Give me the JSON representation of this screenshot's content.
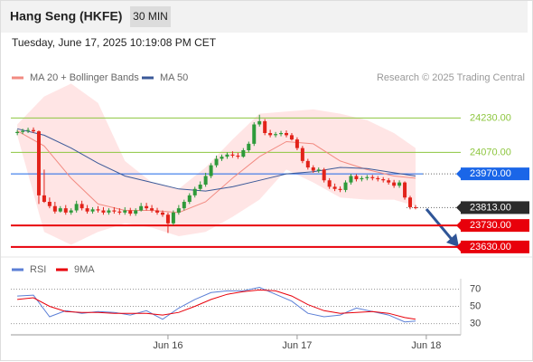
{
  "header": {
    "title": "Hang Seng (HKFE)",
    "timeframe": "30 MIN",
    "timestamp": "Tuesday, June 17, 2025 10:19:08 PM CET",
    "copyright": "Research © 2025 Trading Central"
  },
  "chart_data": [
    {
      "type": "candlestick",
      "x": [
        0,
        1,
        2,
        3,
        4,
        5,
        6,
        7,
        8,
        9,
        10,
        11,
        12,
        13,
        14,
        15,
        16,
        17,
        18,
        19,
        20,
        21,
        22,
        23,
        24,
        25,
        26,
        27,
        28,
        29,
        30,
        31,
        32,
        33,
        34,
        35,
        36,
        37,
        38,
        39,
        40,
        41,
        42,
        43,
        44,
        45,
        46,
        47,
        48,
        49,
        50,
        51,
        52,
        53,
        54,
        55,
        56,
        57,
        58,
        59,
        60,
        61,
        62,
        63,
        64,
        65,
        66,
        67,
        68,
        69,
        70,
        71,
        72,
        73,
        74
      ],
      "open": [
        24160,
        24165,
        24170,
        24174,
        24168,
        23870,
        23840,
        23820,
        23795,
        23810,
        23790,
        23800,
        23830,
        23810,
        23795,
        23805,
        23800,
        23790,
        23800,
        23795,
        23790,
        23800,
        23785,
        23800,
        23820,
        23810,
        23800,
        23790,
        23780,
        23740,
        23790,
        23810,
        23840,
        23870,
        23900,
        23920,
        23960,
        24010,
        24040,
        24050,
        24060,
        24055,
        24050,
        24080,
        24110,
        24200,
        24215,
        24160,
        24150,
        24155,
        24160,
        24150,
        24130,
        24090,
        24030,
        24000,
        23985,
        23990,
        23940,
        23910,
        23900,
        23895,
        23930,
        23960,
        23945,
        23950,
        23955,
        23950,
        23945,
        23940,
        23930,
        23915,
        23930,
        23860,
        23815
      ],
      "high": [
        24175,
        24180,
        24185,
        24186,
        24172,
        23990,
        23860,
        23840,
        23820,
        23825,
        23810,
        23845,
        23845,
        23825,
        23815,
        23820,
        23815,
        23810,
        23815,
        23810,
        23815,
        23812,
        23810,
        23835,
        23835,
        23825,
        23812,
        23800,
        23790,
        23800,
        23825,
        23850,
        23880,
        23910,
        23935,
        23975,
        24020,
        24055,
        24060,
        24070,
        24075,
        24068,
        24090,
        24120,
        24210,
        24245,
        24225,
        24175,
        24165,
        24170,
        24172,
        24160,
        24140,
        24100,
        24040,
        24010,
        24000,
        23998,
        23950,
        23925,
        23912,
        23940,
        23970,
        23968,
        23960,
        23965,
        23965,
        23960,
        23955,
        23950,
        23942,
        23940,
        23935,
        23868,
        23825
      ],
      "low": [
        24150,
        24155,
        24160,
        24160,
        23830,
        23835,
        23810,
        23785,
        23790,
        23780,
        23780,
        23790,
        23800,
        23785,
        23785,
        23790,
        23780,
        23780,
        23785,
        23780,
        23780,
        23775,
        23775,
        23795,
        23800,
        23790,
        23780,
        23770,
        23695,
        23730,
        23780,
        23800,
        23830,
        23860,
        23890,
        23910,
        23950,
        24000,
        24030,
        24040,
        24045,
        24040,
        24045,
        24070,
        24100,
        24190,
        24150,
        24140,
        24140,
        24145,
        24140,
        24125,
        24080,
        24020,
        23990,
        23975,
        23975,
        23930,
        23900,
        23890,
        23885,
        23885,
        23920,
        23935,
        23935,
        23940,
        23940,
        23935,
        23930,
        23920,
        23905,
        23905,
        23850,
        23805,
        23805
      ],
      "close": [
        24165,
        24170,
        24174,
        24168,
        23870,
        23840,
        23820,
        23795,
        23810,
        23790,
        23800,
        23830,
        23810,
        23795,
        23805,
        23800,
        23790,
        23800,
        23795,
        23790,
        23800,
        23785,
        23800,
        23820,
        23810,
        23800,
        23790,
        23780,
        23740,
        23790,
        23810,
        23840,
        23870,
        23900,
        23920,
        23960,
        24010,
        24040,
        24050,
        24060,
        24055,
        24050,
        24080,
        24110,
        24200,
        24215,
        24160,
        24150,
        24155,
        24160,
        24150,
        24130,
        24090,
        24030,
        24000,
        23985,
        23990,
        23940,
        23910,
        23900,
        23895,
        23930,
        23960,
        23945,
        23950,
        23955,
        23950,
        23945,
        23940,
        23930,
        23915,
        23930,
        23860,
        23815,
        23813
      ],
      "up_color": "#2e9a3a",
      "down_color": "#e2231a",
      "series": [
        {
          "name": "MA 20 + Bollinger Bands",
          "color": "#f28b82",
          "x": [
            0,
            5,
            10,
            15,
            20,
            25,
            30,
            35,
            40,
            45,
            50,
            55,
            60,
            65,
            70,
            74
          ],
          "values": [
            24170,
            24100,
            23950,
            23830,
            23800,
            23800,
            23790,
            23840,
            23950,
            24050,
            24120,
            24110,
            24030,
            23990,
            23960,
            23950
          ]
        },
        {
          "name": "MA 50",
          "color": "#3b5998",
          "x": [
            0,
            5,
            10,
            15,
            20,
            25,
            30,
            35,
            40,
            45,
            50,
            55,
            60,
            65,
            70,
            74
          ],
          "values": [
            24180,
            24150,
            24090,
            24020,
            23960,
            23930,
            23900,
            23890,
            23910,
            23940,
            23970,
            23980,
            24000,
            23995,
            23975,
            23960
          ]
        }
      ],
      "bands": {
        "color": "#ffdcdc",
        "x": [
          0,
          5,
          10,
          15,
          20,
          25,
          30,
          35,
          40,
          45,
          50,
          55,
          60,
          65,
          70,
          74
        ],
        "upper": [
          24200,
          24330,
          24390,
          24300,
          24030,
          23930,
          23900,
          24000,
          24130,
          24250,
          24260,
          24270,
          24250,
          24220,
          24160,
          24090
        ],
        "lower": [
          24150,
          23700,
          23640,
          23700,
          23740,
          23720,
          23680,
          23700,
          23770,
          23850,
          23990,
          23930,
          23860,
          23850,
          23850,
          23820
        ]
      },
      "xlim": [
        -1.2,
        82.4
      ],
      "ylim": [
        23600,
        24400
      ],
      "yticks": [
        {
          "value": 24230,
          "label": "24230.00"
        },
        {
          "value": 24070,
          "label": "24070.00"
        },
        {
          "value": 23970,
          "label": "23970.00"
        },
        {
          "value": 23813,
          "label": "23813.00"
        },
        {
          "value": 23730,
          "label": "23730.00"
        },
        {
          "value": 23630,
          "label": "23630.00"
        }
      ],
      "level_colors": [
        "#8dc63f",
        "#8dc63f",
        "#1a66e8",
        "#2b2b2b",
        "#e8000b",
        "#e8000b"
      ],
      "label_boxes": [
        false,
        false,
        true,
        true,
        true,
        true
      ],
      "line_dotted": [
        false,
        false,
        false,
        true,
        false,
        false
      ]
    },
    {
      "type": "line",
      "series": [
        {
          "name": "RSI",
          "color": "#5b7fd6",
          "x": [
            0,
            3,
            6,
            9,
            12,
            15,
            18,
            21,
            24,
            27,
            30,
            33,
            36,
            39,
            42,
            45,
            48,
            51,
            54,
            57,
            60,
            63,
            66,
            69,
            72,
            74
          ],
          "values": [
            62,
            63,
            38,
            45,
            42,
            44,
            43,
            40,
            45,
            35,
            48,
            58,
            66,
            68,
            68,
            72,
            64,
            56,
            42,
            38,
            40,
            48,
            44,
            40,
            32,
            33
          ]
        },
        {
          "name": "9MA",
          "color": "#e8000b",
          "x": [
            0,
            3,
            6,
            9,
            12,
            15,
            18,
            21,
            24,
            27,
            30,
            33,
            36,
            39,
            42,
            45,
            48,
            51,
            54,
            57,
            60,
            63,
            66,
            69,
            72,
            74
          ],
          "values": [
            58,
            60,
            50,
            44,
            43,
            43,
            42,
            42,
            42,
            40,
            43,
            50,
            58,
            64,
            67,
            69,
            68,
            62,
            52,
            45,
            42,
            43,
            44,
            42,
            37,
            35
          ]
        }
      ],
      "xlim": [
        -1.2,
        82.4
      ],
      "ylim": [
        17,
        82
      ],
      "yticks": [
        30,
        50,
        70
      ],
      "xticks": [
        {
          "value": 28,
          "label": "Jun 16"
        },
        {
          "value": 52,
          "label": "Jun 17"
        },
        {
          "value": 76,
          "label": "Jun 18"
        }
      ]
    }
  ]
}
